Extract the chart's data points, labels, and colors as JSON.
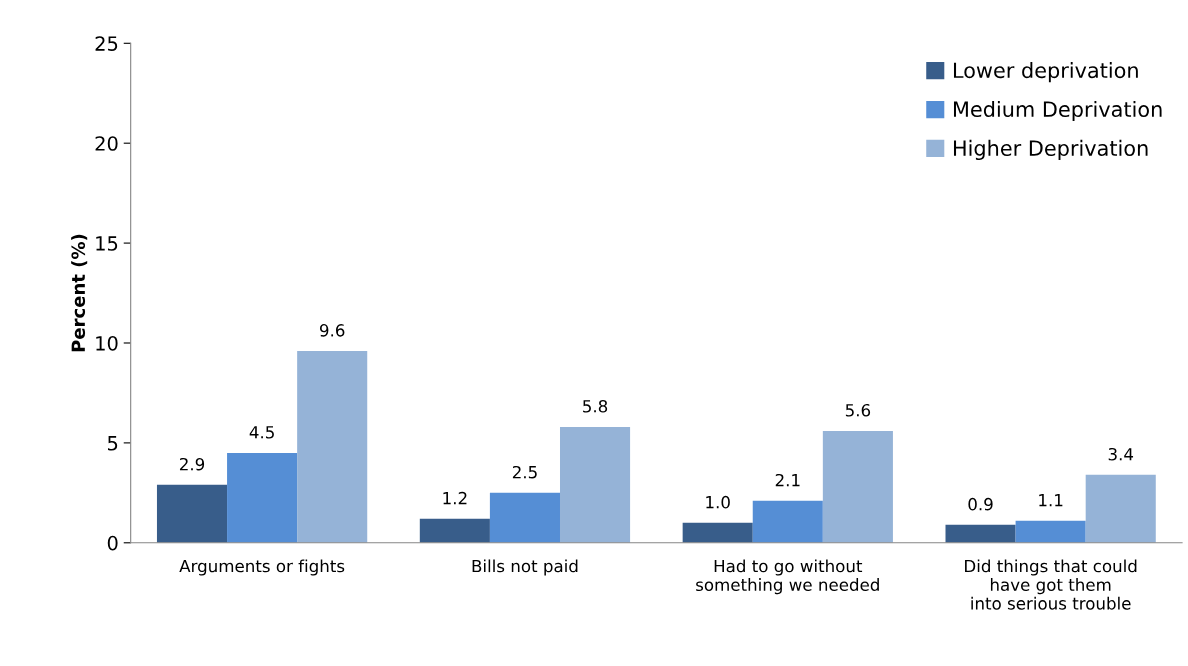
{
  "chart_data": {
    "type": "bar",
    "ylabel": "Percent (%)",
    "categories": [
      "Arguments or fights",
      "Bills not paid",
      "Had to go without\nsomething we needed",
      "Did things that could\nhave got them\ninto serious trouble"
    ],
    "series": [
      {
        "name": "Lower deprivation",
        "color": "#385d8a",
        "values": [
          2.9,
          1.2,
          1.0,
          0.9
        ],
        "value_labels": [
          "2.9",
          "1.2",
          "1.0",
          "0.9"
        ]
      },
      {
        "name": "Medium Deprivation",
        "color": "#558ed5",
        "values": [
          4.5,
          2.5,
          2.1,
          1.1
        ],
        "value_labels": [
          "4.5",
          "2.5",
          "2.1",
          "1.1"
        ]
      },
      {
        "name": "Higher Deprivation",
        "color": "#95b3d7",
        "values": [
          9.6,
          5.8,
          5.6,
          3.4
        ],
        "value_labels": [
          "9.6",
          "5.8",
          "5.6",
          "3.4"
        ]
      }
    ],
    "ylim": [
      0,
      25
    ],
    "yticks": [
      0,
      5,
      10,
      15,
      20,
      25
    ],
    "grid": false,
    "legend": "top right"
  }
}
